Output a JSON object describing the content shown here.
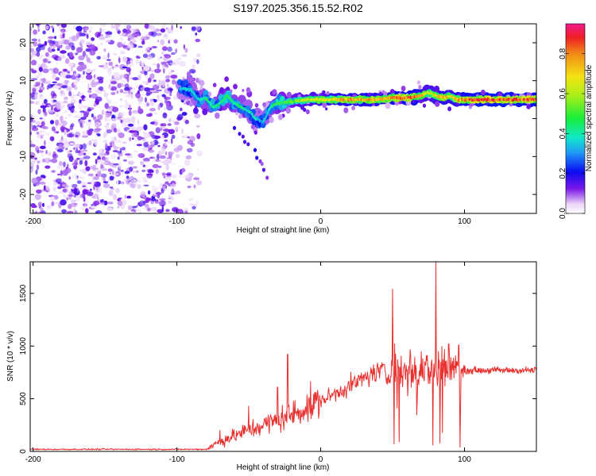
{
  "title": "S197.2025.356.15.52.R02",
  "chart_data": [
    {
      "type": "heatmap",
      "panel": "top",
      "xlabel": "Height of straight line (km)",
      "ylabel": "Frequency (Hz)",
      "xlim": [
        -202,
        150
      ],
      "ylim": [
        -25,
        25
      ],
      "x_ticks": [
        -200,
        -100,
        0,
        100
      ],
      "x_tick_labels": [
        "-200",
        "-100",
        "0",
        "100"
      ],
      "y_ticks": [
        -20,
        -10,
        0,
        10,
        20
      ],
      "y_tick_labels": [
        "-20",
        "-10",
        "0",
        "10",
        "20"
      ],
      "colorbar": {
        "label": "Normalized spectral amplitude",
        "range": [
          0,
          0.95
        ],
        "ticks": [
          0.0,
          0.2,
          0.4,
          0.6,
          0.8
        ],
        "tick_labels": [
          "0.0",
          "0.2",
          "0.4",
          "0.6",
          "0.8"
        ]
      },
      "noise_region_km": [
        -202,
        -92
      ],
      "ridge": [
        {
          "x": -98,
          "f": 8.0,
          "a": 0.35
        },
        {
          "x": -90,
          "f": 7.5,
          "a": 0.4
        },
        {
          "x": -85,
          "f": 5.0,
          "a": 0.4
        },
        {
          "x": -80,
          "f": 5.5,
          "a": 0.45
        },
        {
          "x": -75,
          "f": 3.0,
          "a": 0.45
        },
        {
          "x": -70,
          "f": 4.0,
          "a": 0.45
        },
        {
          "x": -65,
          "f": 6.0,
          "a": 0.5
        },
        {
          "x": -60,
          "f": 4.0,
          "a": 0.45
        },
        {
          "x": -55,
          "f": 3.0,
          "a": 0.45
        },
        {
          "x": -50,
          "f": 2.0,
          "a": 0.4
        },
        {
          "x": -45,
          "f": 0.0,
          "a": 0.4
        },
        {
          "x": -40,
          "f": -1.0,
          "a": 0.35
        },
        {
          "x": -35,
          "f": 3.0,
          "a": 0.45
        },
        {
          "x": -30,
          "f": 4.0,
          "a": 0.5
        },
        {
          "x": -20,
          "f": 4.5,
          "a": 0.55
        },
        {
          "x": -10,
          "f": 5.0,
          "a": 0.65
        },
        {
          "x": 0,
          "f": 5.0,
          "a": 0.7
        },
        {
          "x": 10,
          "f": 5.0,
          "a": 0.75
        },
        {
          "x": 20,
          "f": 5.0,
          "a": 0.8
        },
        {
          "x": 30,
          "f": 5.0,
          "a": 0.8
        },
        {
          "x": 40,
          "f": 5.0,
          "a": 0.8
        },
        {
          "x": 50,
          "f": 5.5,
          "a": 0.85
        },
        {
          "x": 60,
          "f": 5.5,
          "a": 0.9
        },
        {
          "x": 70,
          "f": 6.0,
          "a": 0.8
        },
        {
          "x": 75,
          "f": 7.0,
          "a": 0.65
        },
        {
          "x": 80,
          "f": 6.0,
          "a": 0.7
        },
        {
          "x": 85,
          "f": 5.5,
          "a": 0.8
        },
        {
          "x": 90,
          "f": 6.0,
          "a": 0.7
        },
        {
          "x": 95,
          "f": 5.0,
          "a": 0.8
        },
        {
          "x": 100,
          "f": 5.0,
          "a": 0.85
        },
        {
          "x": 110,
          "f": 5.0,
          "a": 0.9
        },
        {
          "x": 120,
          "f": 5.0,
          "a": 0.92
        },
        {
          "x": 130,
          "f": 5.0,
          "a": 0.92
        },
        {
          "x": 140,
          "f": 5.0,
          "a": 0.9
        },
        {
          "x": 150,
          "f": 5.0,
          "a": 0.88
        }
      ],
      "branch": [
        {
          "x": -60,
          "f": -2.0,
          "a": 0.35
        },
        {
          "x": -52,
          "f": -6.0,
          "a": 0.3
        },
        {
          "x": -47,
          "f": -8.0,
          "a": 0.3
        },
        {
          "x": -36,
          "f": -16.5,
          "a": 0.2
        }
      ]
    },
    {
      "type": "line",
      "panel": "bottom",
      "xlabel": "Height of straight line (km)",
      "ylabel": "SNR (10 * v/v)",
      "xlim": [
        -202,
        150
      ],
      "ylim": [
        0,
        1800
      ],
      "x_ticks": [
        -200,
        -100,
        0,
        100
      ],
      "x_tick_labels": [
        "-200",
        "-100",
        "0",
        "100"
      ],
      "y_ticks": [
        0,
        500,
        1000,
        1500
      ],
      "y_tick_labels": [
        "0",
        "500",
        "1000",
        "1500"
      ],
      "color": "#e8302e",
      "envelope": [
        {
          "x": -202,
          "y": 20
        },
        {
          "x": -80,
          "y": 20
        },
        {
          "x": -72,
          "y": 80
        },
        {
          "x": -60,
          "y": 150
        },
        {
          "x": -40,
          "y": 250
        },
        {
          "x": -20,
          "y": 350
        },
        {
          "x": 0,
          "y": 480
        },
        {
          "x": 20,
          "y": 620
        },
        {
          "x": 35,
          "y": 730
        },
        {
          "x": 50,
          "y": 800
        },
        {
          "x": 70,
          "y": 800
        },
        {
          "x": 100,
          "y": 770
        },
        {
          "x": 150,
          "y": 770
        }
      ],
      "peaks": [
        {
          "x": -70,
          "y": 200
        },
        {
          "x": -50,
          "y": 430
        },
        {
          "x": -30,
          "y": 610
        },
        {
          "x": -23,
          "y": 920
        },
        {
          "x": 50,
          "y": 1540
        },
        {
          "x": 80,
          "y": 1800
        },
        {
          "x": 89,
          "y": 1020
        },
        {
          "x": 96,
          "y": 1010
        }
      ],
      "dips": [
        {
          "x": 51,
          "y": 70
        },
        {
          "x": 78,
          "y": 60
        },
        {
          "x": 83,
          "y": 80
        },
        {
          "x": 97,
          "y": 40
        }
      ]
    }
  ]
}
